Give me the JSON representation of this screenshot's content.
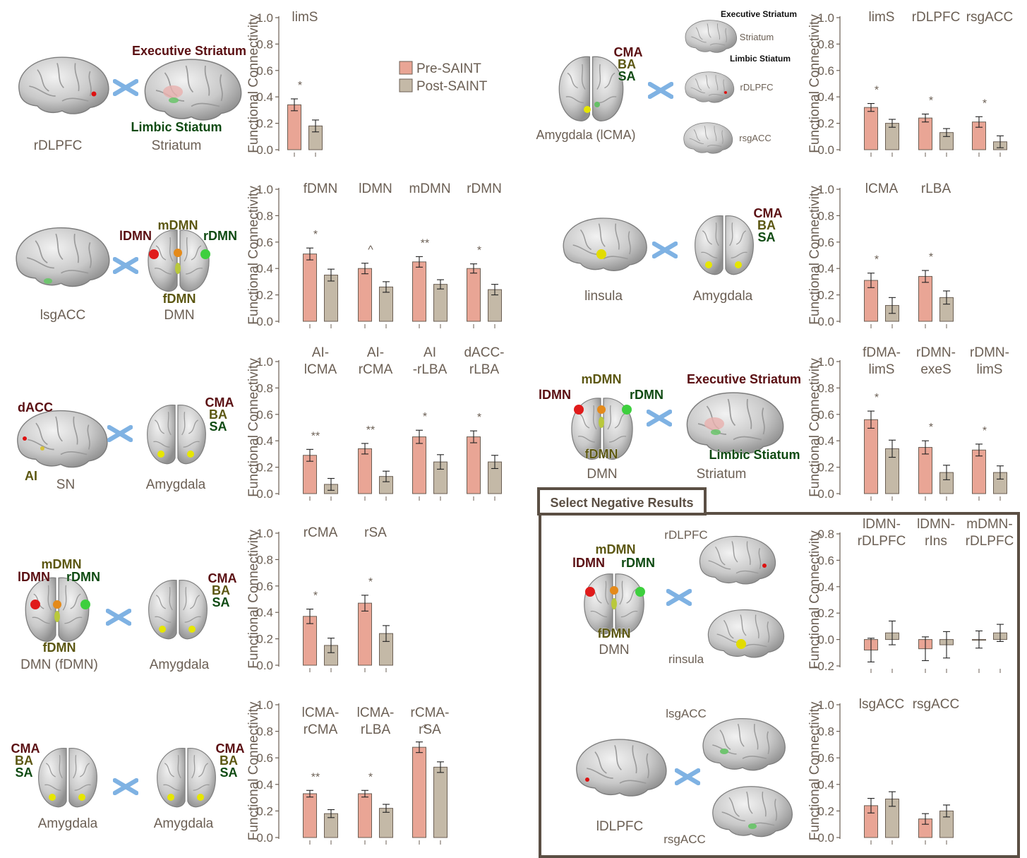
{
  "legend": {
    "pre": "Pre-SAINT",
    "post": "Post-SAINT"
  },
  "colors": {
    "pre": "#e9a595",
    "post": "#c4b9a7",
    "axis": "#6b5f54",
    "box": "#5b4f44",
    "cross": "#7fb2e3"
  },
  "negative_box_title": "Select Negative Results",
  "labels": {
    "p1": {
      "left": "rDLPFC",
      "right": "Striatum",
      "exe": "Executive Striatum",
      "lim": "Limbic Stiatum"
    },
    "p2": {
      "left": "lsgACC",
      "right": "DMN",
      "ldmn": "lDMN",
      "mdmn": "mDMN",
      "rdmn": "rDMN",
      "fdmn": "fDMN"
    },
    "p3": {
      "left": "SN",
      "right": "Amygdala",
      "dacc": "dACC",
      "ai": "AI",
      "cma": "CMA",
      "ba": "BA",
      "sa": "SA"
    },
    "p4": {
      "left": "DMN (fDMN)",
      "right": "Amygdala",
      "ldmn": "lDMN",
      "mdmn": "mDMN",
      "rdmn": "rDMN",
      "fdmn": "fDMN",
      "cma": "CMA",
      "ba": "BA",
      "sa": "SA"
    },
    "p5": {
      "left": "Amygdala",
      "right": "Amygdala",
      "cma1": "CMA",
      "ba1": "BA",
      "sa1": "SA",
      "cma2": "CMA",
      "ba2": "BA",
      "sa2": "SA"
    },
    "p6": {
      "left": "Amygdala (lCMA)",
      "cma": "CMA",
      "ba": "BA",
      "sa": "SA",
      "exe": "Executive Striatum",
      "str": "Striatum",
      "lim": "Limbic Stiatum",
      "rdlpfc": "rDLPFC",
      "rsgacc": "rsgACC"
    },
    "p7": {
      "left": "linsula",
      "right": "Amygdala",
      "cma": "CMA",
      "ba": "BA",
      "sa": "SA"
    },
    "p8": {
      "left": "DMN",
      "right": "Striatum",
      "ldmn": "lDMN",
      "mdmn": "mDMN",
      "rdmn": "rDMN",
      "fdmn": "fDMN",
      "exe": "Executive Striatum",
      "lim": "Limbic Stiatum"
    },
    "p9": {
      "left": "DMN",
      "ldmn": "lDMN",
      "mdmn": "mDMN",
      "rdmn": "rDMN",
      "fdmn": "fDMN",
      "rdlpfc": "rDLPFC",
      "rinsula": "rinsula"
    },
    "p10": {
      "left": "lDLPFC",
      "lsgacc": "lsgACC",
      "rsgacc": "rsgACC"
    }
  },
  "chart_data": [
    {
      "id": "c1",
      "type": "bar",
      "ylabel": "Functional Connectivity",
      "ylim": [
        0,
        1.0
      ],
      "yticks": [
        "0.0",
        "0.2",
        "0.4",
        "0.6",
        "0.8",
        "1.0"
      ],
      "categories": [
        [
          "limS"
        ]
      ],
      "series": [
        {
          "name": "Pre-SAINT",
          "values": [
            0.34
          ],
          "err": [
            0.045
          ]
        },
        {
          "name": "Post-SAINT",
          "values": [
            0.18
          ],
          "err": [
            0.045
          ]
        }
      ],
      "sig": [
        "*"
      ]
    },
    {
      "id": "c2",
      "type": "bar",
      "ylabel": "Functional Connectivity",
      "ylim": [
        0,
        1.0
      ],
      "yticks": [
        "0.0",
        "0.2",
        "0.4",
        "0.6",
        "0.8",
        "1.0"
      ],
      "categories": [
        [
          "fDMN"
        ],
        [
          "lDMN"
        ],
        [
          "mDMN"
        ],
        [
          "rDMN"
        ]
      ],
      "series": [
        {
          "name": "Pre-SAINT",
          "values": [
            0.51,
            0.4,
            0.45,
            0.4
          ],
          "err": [
            0.045,
            0.04,
            0.04,
            0.035
          ]
        },
        {
          "name": "Post-SAINT",
          "values": [
            0.35,
            0.26,
            0.28,
            0.24
          ],
          "err": [
            0.045,
            0.04,
            0.035,
            0.04
          ]
        }
      ],
      "sig": [
        "*",
        "^",
        "**",
        "*"
      ]
    },
    {
      "id": "c3",
      "type": "bar",
      "ylabel": "Functional Connectivity",
      "ylim": [
        0,
        1.0
      ],
      "yticks": [
        "0.0",
        "0.2",
        "0.4",
        "0.6",
        "0.8",
        "1.0"
      ],
      "categories": [
        [
          "AI-",
          "lCMA"
        ],
        [
          "AI-",
          "rCMA"
        ],
        [
          "AI",
          "-rLBA"
        ],
        [
          "dACC-",
          "rLBA"
        ]
      ],
      "series": [
        {
          "name": "Pre-SAINT",
          "values": [
            0.29,
            0.34,
            0.43,
            0.43
          ],
          "err": [
            0.045,
            0.04,
            0.05,
            0.045
          ]
        },
        {
          "name": "Post-SAINT",
          "values": [
            0.07,
            0.13,
            0.24,
            0.24
          ],
          "err": [
            0.045,
            0.04,
            0.055,
            0.05
          ]
        }
      ],
      "sig": [
        "**",
        "**",
        "*",
        "*"
      ]
    },
    {
      "id": "c4",
      "type": "bar",
      "ylabel": "Functional Connectivity",
      "ylim": [
        0,
        1.0
      ],
      "yticks": [
        "0.0",
        "0.2",
        "0.4",
        "0.6",
        "0.8",
        "1.0"
      ],
      "categories": [
        [
          "rCMA"
        ],
        [
          "rSA"
        ]
      ],
      "series": [
        {
          "name": "Pre-SAINT",
          "values": [
            0.37,
            0.47
          ],
          "err": [
            0.055,
            0.06
          ]
        },
        {
          "name": "Post-SAINT",
          "values": [
            0.15,
            0.24
          ],
          "err": [
            0.055,
            0.06
          ]
        }
      ],
      "sig": [
        "*",
        "*"
      ]
    },
    {
      "id": "c5",
      "type": "bar",
      "ylabel": "Functional Connectivity",
      "ylim": [
        0,
        1.0
      ],
      "yticks": [
        "0.0",
        "0.2",
        "0.4",
        "0.6",
        "0.8",
        "1.0"
      ],
      "categories": [
        [
          "lCMA-",
          "rCMA"
        ],
        [
          "lCMA-",
          "rLBA"
        ],
        [
          "rCMA-",
          "rSA"
        ]
      ],
      "series": [
        {
          "name": "Pre-SAINT",
          "values": [
            0.33,
            0.33,
            0.68
          ],
          "err": [
            0.025,
            0.025,
            0.04
          ]
        },
        {
          "name": "Post-SAINT",
          "values": [
            0.18,
            0.22,
            0.53
          ],
          "err": [
            0.03,
            0.03,
            0.04
          ]
        }
      ],
      "sig": [
        "**",
        "*",
        "*"
      ]
    },
    {
      "id": "c6",
      "type": "bar",
      "ylabel": "Functional Connectivity",
      "ylim": [
        0,
        1.0
      ],
      "yticks": [
        "0.0",
        "0.2",
        "0.4",
        "0.6",
        "0.8",
        "1.0"
      ],
      "categories": [
        [
          "limS"
        ],
        [
          "rDLPFC"
        ],
        [
          "rsgACC"
        ]
      ],
      "series": [
        {
          "name": "Pre-SAINT",
          "values": [
            0.32,
            0.24,
            0.21
          ],
          "err": [
            0.03,
            0.03,
            0.04
          ]
        },
        {
          "name": "Post-SAINT",
          "values": [
            0.2,
            0.13,
            0.06
          ],
          "err": [
            0.03,
            0.03,
            0.045
          ]
        }
      ],
      "sig": [
        "*",
        "*",
        "*"
      ]
    },
    {
      "id": "c7",
      "type": "bar",
      "ylabel": "Functional Connectivity",
      "ylim": [
        0,
        1.0
      ],
      "yticks": [
        "0.0",
        "0.2",
        "0.4",
        "0.6",
        "0.8",
        "1.0"
      ],
      "categories": [
        [
          "lCMA"
        ],
        [
          "rLBA"
        ]
      ],
      "series": [
        {
          "name": "Pre-SAINT",
          "values": [
            0.31,
            0.34
          ],
          "err": [
            0.055,
            0.045
          ]
        },
        {
          "name": "Post-SAINT",
          "values": [
            0.12,
            0.18
          ],
          "err": [
            0.06,
            0.05
          ]
        }
      ],
      "sig": [
        "*",
        "*"
      ]
    },
    {
      "id": "c8",
      "type": "bar",
      "ylabel": "Functional Connectivity",
      "ylim": [
        0,
        1.0
      ],
      "yticks": [
        "0.0",
        "0.2",
        "0.4",
        "0.6",
        "0.8",
        "1.0"
      ],
      "categories": [
        [
          "fDMA-",
          "limS"
        ],
        [
          "rDMN-",
          "exeS"
        ],
        [
          "rDMN-",
          "limS"
        ]
      ],
      "series": [
        {
          "name": "Pre-SAINT",
          "values": [
            0.56,
            0.35,
            0.33
          ],
          "err": [
            0.065,
            0.05,
            0.045
          ]
        },
        {
          "name": "Post-SAINT",
          "values": [
            0.34,
            0.16,
            0.16
          ],
          "err": [
            0.065,
            0.055,
            0.05
          ]
        }
      ],
      "sig": [
        "*",
        "*",
        "*"
      ]
    },
    {
      "id": "c9",
      "type": "bar",
      "ylabel": "Functional Connectivity",
      "ylim": [
        -0.2,
        0.8
      ],
      "yticks": [
        "-0.2",
        "0.0",
        "0.2",
        "0.4",
        "0.6",
        "0.8"
      ],
      "categories": [
        [
          "lDMN-",
          "rDLPFC"
        ],
        [
          "lDMN-",
          "rIns"
        ],
        [
          "mDMN-",
          "rDLPFC"
        ]
      ],
      "series": [
        {
          "name": "Pre-SAINT",
          "values": [
            -0.08,
            -0.07,
            0.0
          ],
          "err": [
            0.09,
            0.09,
            0.065
          ]
        },
        {
          "name": "Post-SAINT",
          "values": [
            0.05,
            -0.04,
            0.05
          ],
          "err": [
            0.09,
            0.1,
            0.065
          ]
        }
      ],
      "sig": [
        "",
        "",
        ""
      ]
    },
    {
      "id": "c10",
      "type": "bar",
      "ylabel": "Functional Connectivity",
      "ylim": [
        0,
        1.0
      ],
      "yticks": [
        "0.0",
        "0.2",
        "0.4",
        "0.6",
        "0.8",
        "1.0"
      ],
      "categories": [
        [
          "lsgACC"
        ],
        [
          "rsgACC"
        ]
      ],
      "series": [
        {
          "name": "Pre-SAINT",
          "values": [
            0.24,
            0.14
          ],
          "err": [
            0.055,
            0.04
          ]
        },
        {
          "name": "Post-SAINT",
          "values": [
            0.29,
            0.2
          ],
          "err": [
            0.055,
            0.045
          ]
        }
      ],
      "sig": [
        "",
        ""
      ]
    }
  ]
}
